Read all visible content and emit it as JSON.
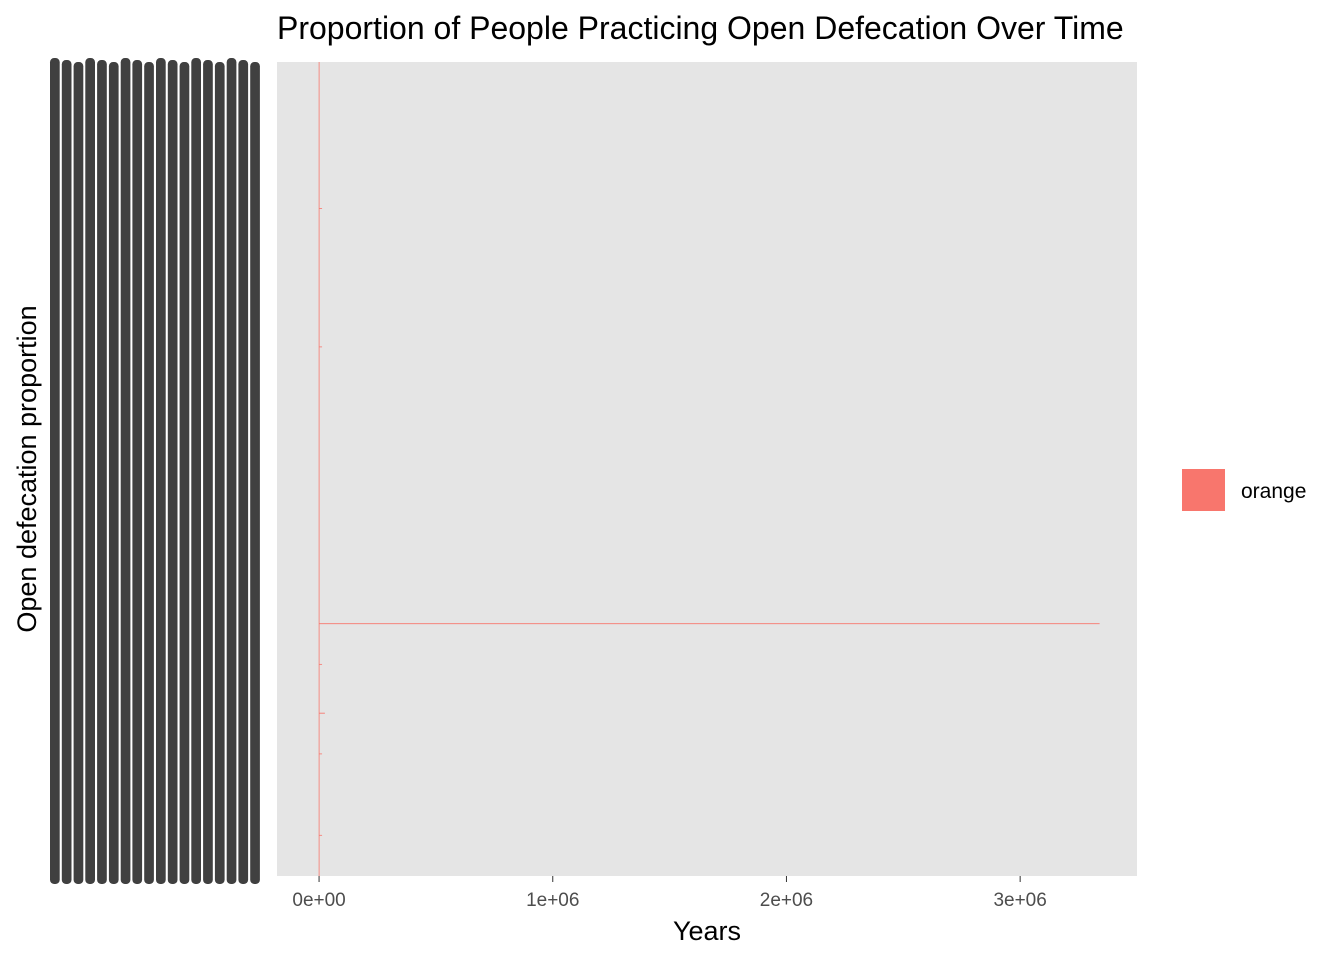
{
  "chart_data": {
    "type": "line",
    "title": "Proportion of People Practicing Open Defecation Over Time",
    "xlabel": "Years",
    "ylabel": "Open defecation proportion",
    "xlim": [
      -180000,
      3500000
    ],
    "x_ticks": [
      {
        "value": 0,
        "label": "0e+00"
      },
      {
        "value": 1000000,
        "label": "1e+06"
      },
      {
        "value": 2000000,
        "label": "2e+06"
      },
      {
        "value": 3000000,
        "label": "3e+06"
      }
    ],
    "y_tick_labels_overplotted": true,
    "grid": false,
    "panel_background": "#e5e5e5",
    "legend": {
      "position": "right",
      "entries": [
        {
          "label": "orange",
          "color": "#f8766d"
        }
      ]
    },
    "series": [
      {
        "color": "#f8766d",
        "x": [
          0,
          0,
          3340000,
          0,
          0,
          25000,
          0,
          0
        ],
        "y_position_fraction": [
          0.0,
          0.69,
          0.69,
          0.69,
          0.8,
          0.8,
          0.8,
          1.0
        ]
      }
    ]
  }
}
